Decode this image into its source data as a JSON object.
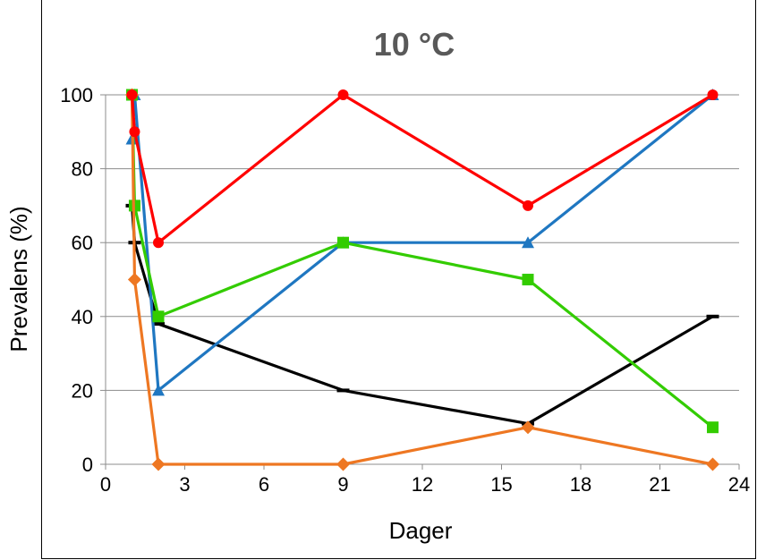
{
  "chart_data": {
    "type": "line",
    "title": "10 °C",
    "xlabel": "Dager",
    "ylabel": "Prevalens (%)",
    "xlim": [
      0,
      24
    ],
    "ylim": [
      0,
      100
    ],
    "xticks": [
      0,
      3,
      6,
      9,
      12,
      15,
      18,
      21,
      24
    ],
    "yticks": [
      0,
      20,
      40,
      60,
      80,
      100
    ],
    "grid": "horizontal",
    "series": [
      {
        "color": "#000000",
        "marker": "dash",
        "points": [
          [
            1,
            70
          ],
          [
            1.1,
            60
          ],
          [
            2,
            38
          ],
          [
            9,
            20
          ],
          [
            16,
            11
          ],
          [
            23,
            40
          ]
        ]
      },
      {
        "color": "#1f77c1",
        "marker": "triangle",
        "points": [
          [
            1,
            88
          ],
          [
            1.1,
            100
          ],
          [
            2,
            20
          ],
          [
            9,
            60
          ],
          [
            16,
            60
          ],
          [
            23,
            100
          ]
        ]
      },
      {
        "color": "#33cc00",
        "marker": "square",
        "points": [
          [
            1,
            100
          ],
          [
            1.1,
            70
          ],
          [
            2,
            40
          ],
          [
            9,
            60
          ],
          [
            16,
            50
          ],
          [
            23,
            10
          ]
        ]
      },
      {
        "color": "#ee7722",
        "marker": "diamond",
        "points": [
          [
            1,
            100
          ],
          [
            1.1,
            50
          ],
          [
            2,
            0
          ],
          [
            9,
            0
          ],
          [
            16,
            10
          ],
          [
            23,
            0
          ]
        ]
      },
      {
        "color": "#ff0000",
        "marker": "circle",
        "points": [
          [
            1,
            100
          ],
          [
            1.1,
            90
          ],
          [
            2,
            60
          ],
          [
            9,
            100
          ],
          [
            16,
            70
          ],
          [
            23,
            100
          ]
        ]
      }
    ]
  }
}
